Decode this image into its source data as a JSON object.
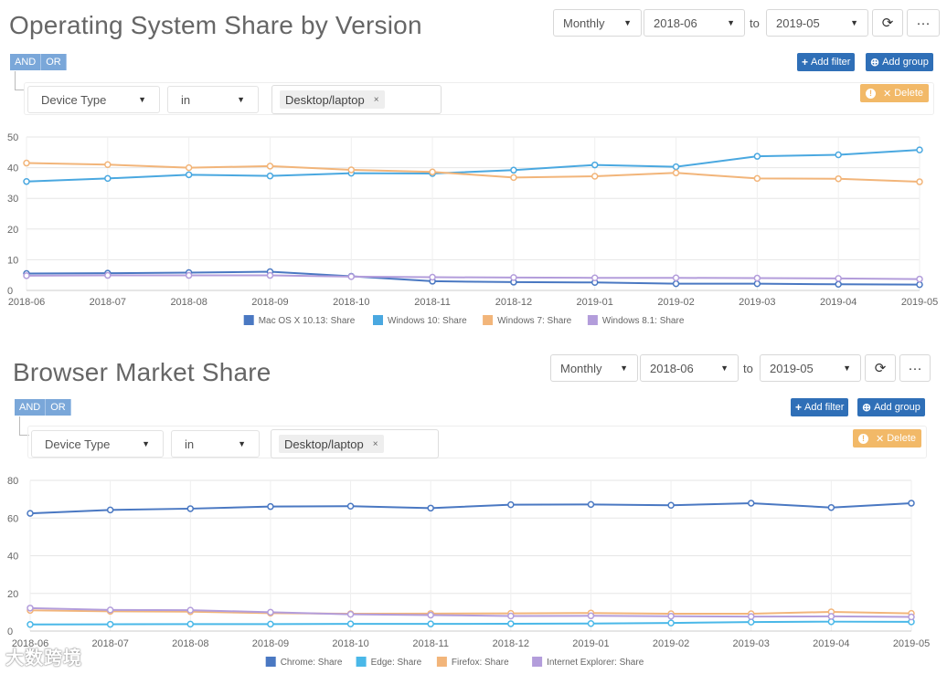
{
  "panels": [
    {
      "title": "Operating System Share by Version",
      "period": "Monthly",
      "from": "2018-06",
      "to_label": "to",
      "to": "2019-05",
      "refresh_icon": "refresh-icon",
      "more_icon": "ellipsis-icon",
      "more_label": "···",
      "and_label": "AND",
      "or_label": "OR",
      "add_filter": "Add filter",
      "add_group": "Add group",
      "delete": "Delete",
      "field": "Device Type",
      "operator": "in",
      "tag": "Desktop/laptop"
    },
    {
      "title": "Browser Market Share",
      "period": "Monthly",
      "from": "2018-06",
      "to_label": "to",
      "to": "2019-05",
      "refresh_icon": "refresh-icon",
      "more_icon": "ellipsis-icon",
      "more_label": "···",
      "and_label": "AND",
      "or_label": "OR",
      "add_filter": "Add filter",
      "add_group": "Add group",
      "delete": "Delete",
      "field": "Device Type",
      "operator": "in",
      "tag": "Desktop/laptop"
    }
  ],
  "chart_data": [
    {
      "type": "line",
      "x": [
        "2018-06",
        "2018-07",
        "2018-08",
        "2018-09",
        "2018-10",
        "2018-11",
        "2018-12",
        "2019-01",
        "2019-02",
        "2019-03",
        "2019-04",
        "2019-05"
      ],
      "ylim": [
        0,
        50
      ],
      "yticks": [
        0,
        10,
        20,
        30,
        40,
        50
      ],
      "grid": true,
      "legend_position": "bottom",
      "series": [
        {
          "name": "Mac OS X 10.13: Share",
          "color": "#4a78c2",
          "values": [
            5.5,
            5.6,
            5.8,
            6.1,
            4.6,
            3.0,
            2.7,
            2.6,
            2.2,
            2.2,
            2.0,
            1.9
          ]
        },
        {
          "name": "Windows 10: Share",
          "color": "#4aa8e0",
          "values": [
            35.5,
            36.5,
            37.7,
            37.3,
            38.2,
            38.1,
            39.2,
            40.9,
            40.3,
            43.7,
            44.2,
            45.8
          ]
        },
        {
          "name": "Windows 7: Share",
          "color": "#f2b57a",
          "values": [
            41.5,
            41.0,
            40.0,
            40.5,
            39.3,
            38.6,
            36.8,
            37.2,
            38.3,
            36.5,
            36.4,
            35.4
          ]
        },
        {
          "name": "Windows 8.1: Share",
          "color": "#b39ddb",
          "values": [
            4.8,
            4.9,
            4.9,
            4.9,
            4.5,
            4.3,
            4.2,
            4.1,
            4.1,
            4.0,
            3.9,
            3.7
          ]
        }
      ]
    },
    {
      "type": "line",
      "x": [
        "2018-06",
        "2018-07",
        "2018-08",
        "2018-09",
        "2018-10",
        "2018-11",
        "2018-12",
        "2019-01",
        "2019-02",
        "2019-03",
        "2019-04",
        "2019-05"
      ],
      "ylim": [
        0,
        80
      ],
      "yticks": [
        0,
        20,
        40,
        60,
        80
      ],
      "grid": true,
      "legend_position": "bottom",
      "series": [
        {
          "name": "Chrome: Share",
          "color": "#4a78c2",
          "values": [
            62.5,
            64.3,
            65.0,
            66.1,
            66.3,
            65.3,
            67.1,
            67.2,
            66.8,
            67.9,
            65.6,
            67.9
          ]
        },
        {
          "name": "Edge: Share",
          "color": "#4ab8e8",
          "values": [
            3.5,
            3.6,
            3.7,
            3.7,
            3.8,
            3.8,
            3.9,
            4.0,
            4.3,
            4.8,
            5.0,
            4.9
          ]
        },
        {
          "name": "Firefox: Share",
          "color": "#f2b57a",
          "values": [
            11.0,
            10.5,
            10.3,
            9.5,
            9.2,
            9.3,
            9.4,
            9.6,
            9.2,
            9.2,
            10.2,
            9.4
          ]
        },
        {
          "name": "Internet Explorer: Share",
          "color": "#b39ddb",
          "values": [
            12.2,
            11.2,
            11.1,
            10.0,
            8.9,
            8.5,
            8.0,
            8.1,
            7.9,
            7.7,
            7.8,
            7.5
          ]
        }
      ]
    }
  ],
  "watermark": "大数跨境"
}
